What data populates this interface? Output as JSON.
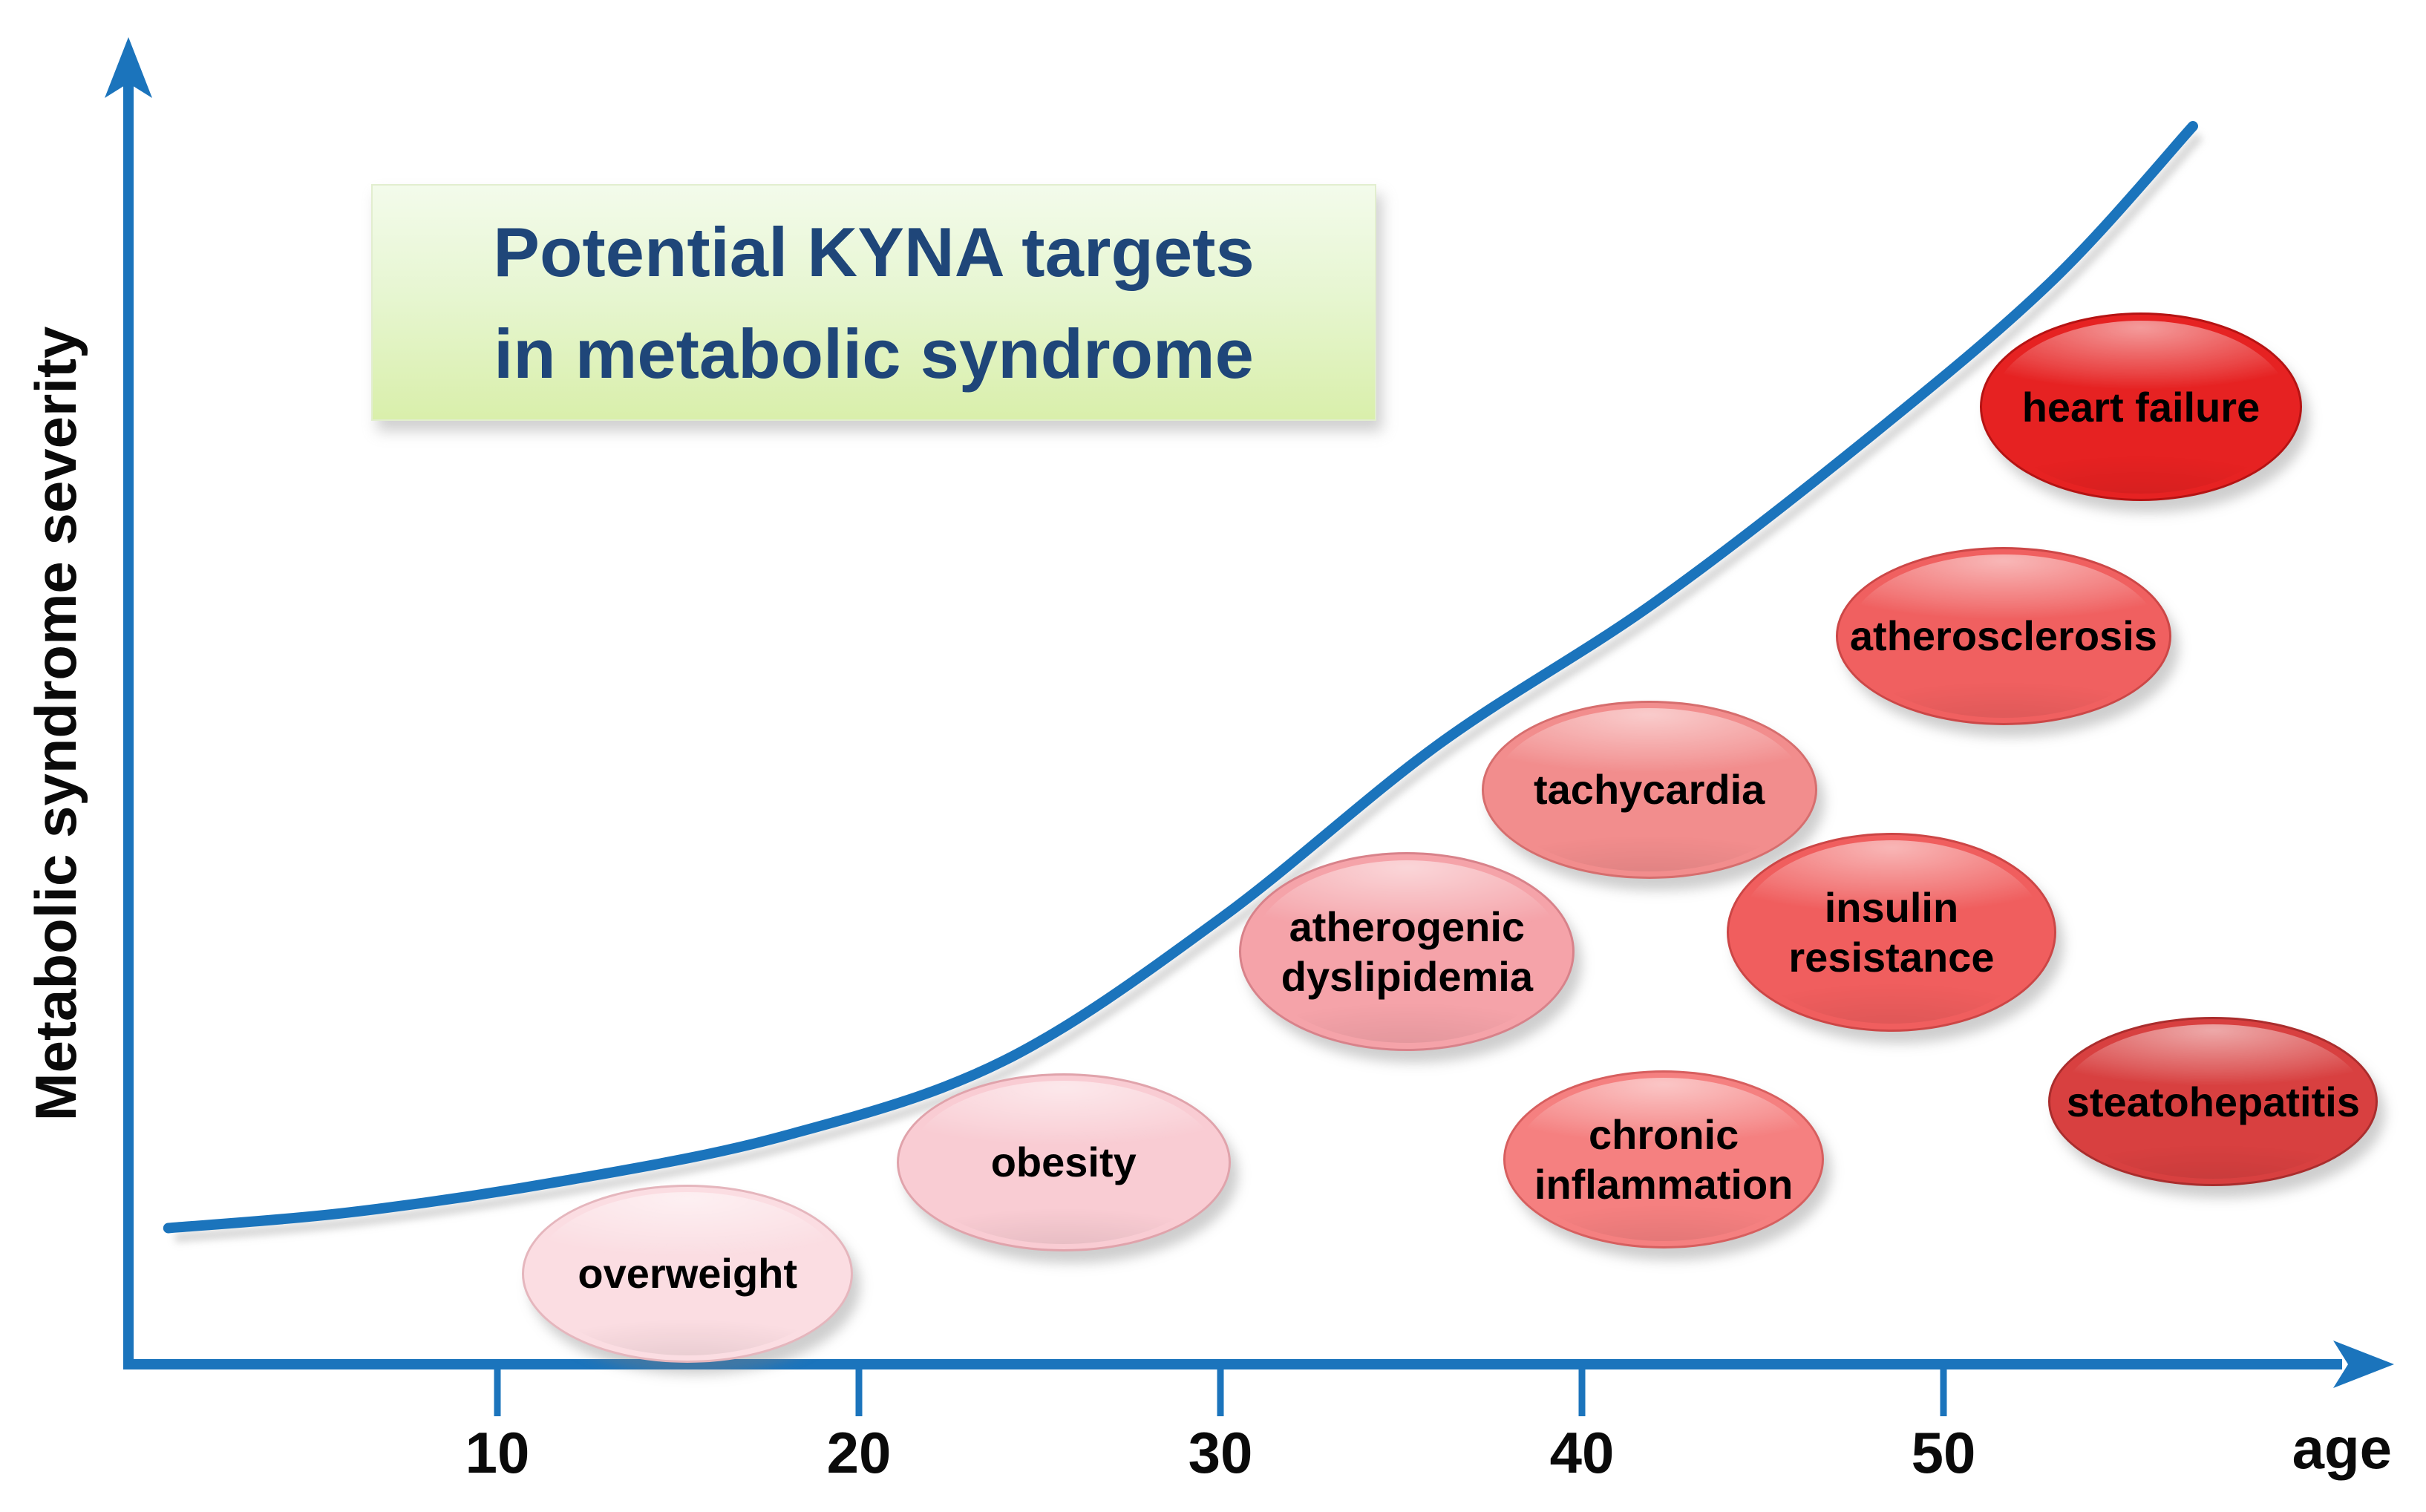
{
  "title": {
    "line1": "Potential KYNA targets",
    "line2": "in metabolic syndrome"
  },
  "colors": {
    "axis_blue": "#1b74bc",
    "title_text": "#1f4679",
    "title_box_top": "#f3fbeb",
    "title_box_bottom": "#d9efab",
    "bubble_text": "#000000",
    "tick_text": "#0a0a0a",
    "shadow_gray": "#bdbdbd"
  },
  "chart_data": {
    "type": "line",
    "title": "Potential KYNA targets in metabolic syndrome",
    "xlabel": "age",
    "ylabel": "Metabolic syndrome severity",
    "x_ticks": [
      10,
      20,
      30,
      40,
      50
    ],
    "x_tick_labels": [
      "10",
      "20",
      "30",
      "40",
      "50"
    ],
    "xlim": [
      0,
      63
    ],
    "ylim_severity_pct": [
      0,
      100
    ],
    "grid": false,
    "legend": "none",
    "curve": {
      "name": "metabolic syndrome severity vs age",
      "x_age": [
        0.9,
        6,
        12,
        18,
        24,
        30,
        36,
        42,
        48,
        53,
        56.9
      ],
      "y_severity_pct": [
        11.0,
        12.3,
        14.9,
        18.5,
        24.5,
        36.0,
        50.0,
        61.5,
        75.0,
        87.5,
        100.0
      ]
    },
    "annotations": [
      {
        "id": "overweight",
        "lines": [
          "overweight"
        ],
        "age": 15.2,
        "severity_pct": 7.5,
        "rx": 220,
        "ry": 117,
        "fill": "#fbdde2",
        "border": "#e5b6bd"
      },
      {
        "id": "obesity",
        "lines": [
          "obesity"
        ],
        "age": 25.6,
        "severity_pct": 16.5,
        "rx": 222,
        "ry": 117,
        "fill": "#f9ccd3",
        "border": "#e0a3ab"
      },
      {
        "id": "atherogenic-dyslipidemia",
        "lines": [
          "atherogenic",
          "dyslipidemia"
        ],
        "age": 35.1,
        "severity_pct": 33.5,
        "rx": 223,
        "ry": 131,
        "fill": "#f5a3a9",
        "border": "#d8828a"
      },
      {
        "id": "chronic-inflammation",
        "lines": [
          "chronic",
          "inflammation"
        ],
        "age": 42.2,
        "severity_pct": 16.7,
        "rx": 213,
        "ry": 117,
        "fill": "#f58080",
        "border": "#d75f5f"
      },
      {
        "id": "tachycardia",
        "lines": [
          "tachycardia"
        ],
        "age": 41.8,
        "severity_pct": 46.6,
        "rx": 223,
        "ry": 117,
        "fill": "#f28d8d",
        "border": "#d66e6e"
      },
      {
        "id": "insulin-resistance",
        "lines": [
          "insulin",
          "resistance"
        ],
        "age": 48.5,
        "severity_pct": 35.1,
        "rx": 219,
        "ry": 131,
        "fill": "#f05e5e",
        "border": "#cc4646"
      },
      {
        "id": "atherosclerosis",
        "lines": [
          "atherosclerosis"
        ],
        "age": 51.6,
        "severity_pct": 59.0,
        "rx": 223,
        "ry": 117,
        "fill": "#f06060",
        "border": "#cc4747"
      },
      {
        "id": "heart-failure",
        "lines": [
          "heart failure"
        ],
        "age": 55.4,
        "severity_pct": 77.5,
        "rx": 214,
        "ry": 124,
        "fill": "#e62222",
        "border": "#b51313"
      },
      {
        "id": "steatohepatitis",
        "lines": [
          "steatohepatitis"
        ],
        "age": 57.4,
        "severity_pct": 21.4,
        "rx": 219,
        "ry": 111,
        "fill": "#d84040",
        "border": "#aa2d2d"
      }
    ]
  }
}
